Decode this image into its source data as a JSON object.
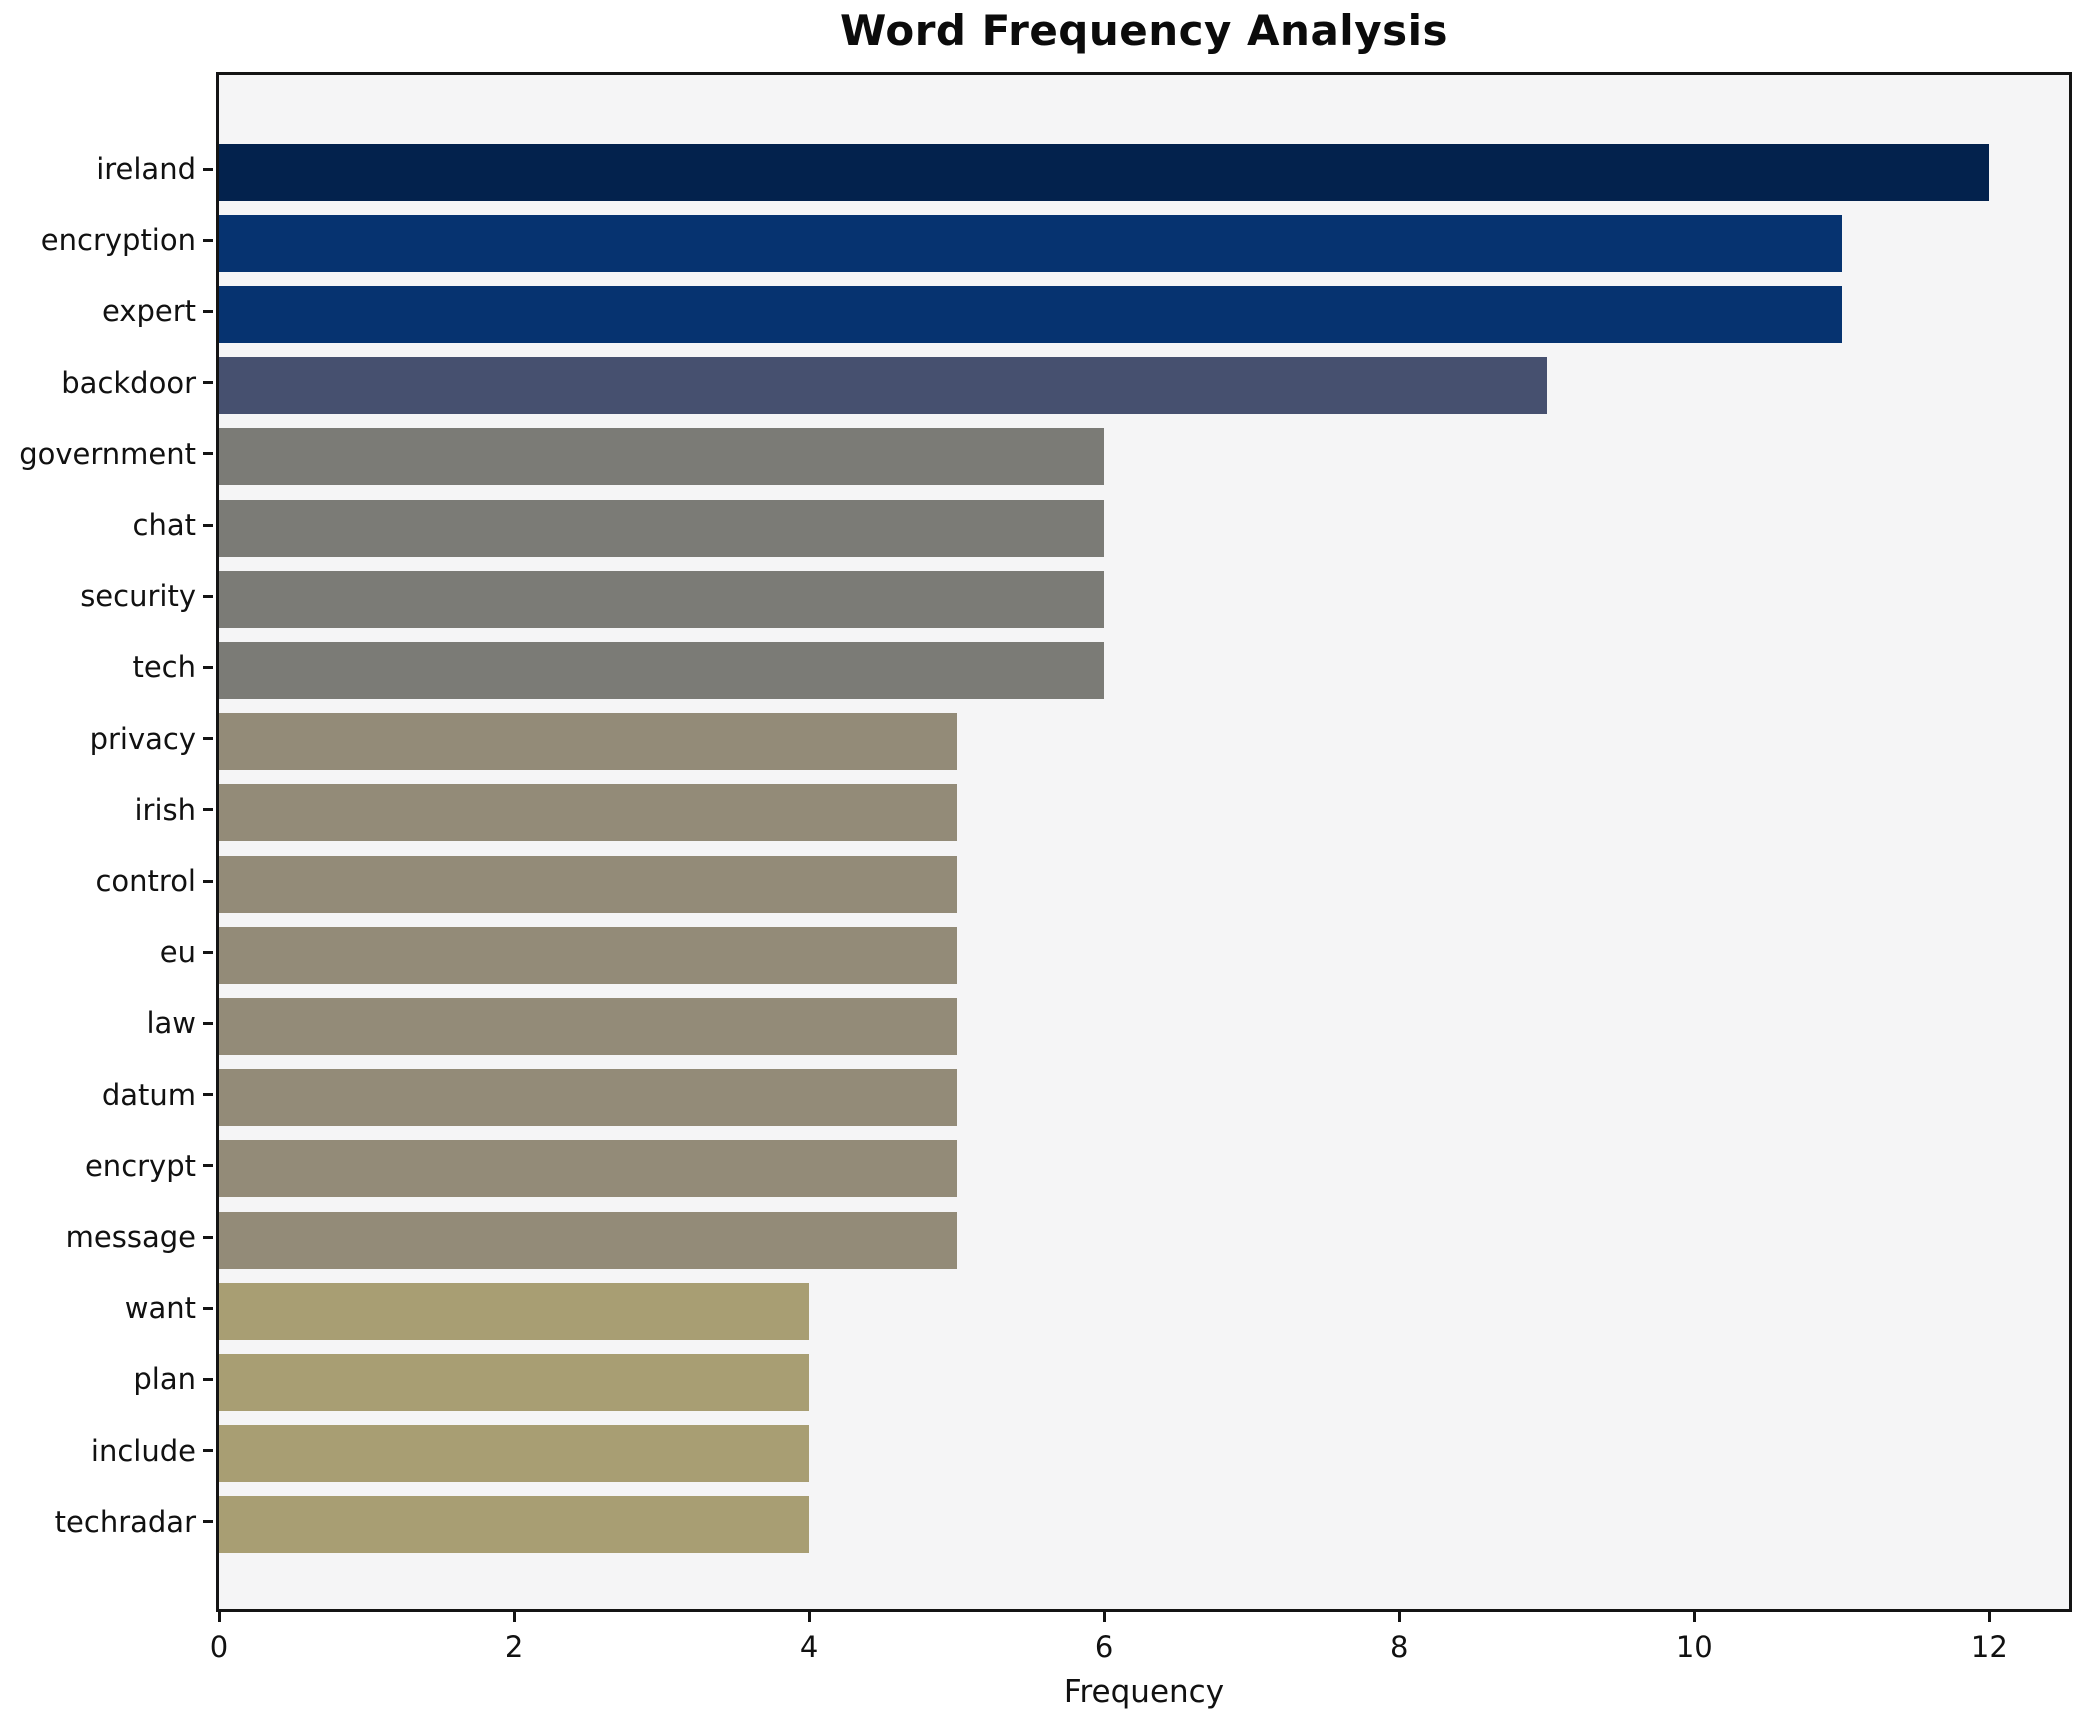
{
  "chart_data": {
    "type": "bar",
    "orientation": "horizontal",
    "title": "Word Frequency Analysis",
    "xlabel": "Frequency",
    "ylabel": "",
    "categories": [
      "ireland",
      "encryption",
      "expert",
      "backdoor",
      "government",
      "chat",
      "security",
      "tech",
      "privacy",
      "irish",
      "control",
      "eu",
      "law",
      "datum",
      "encrypt",
      "message",
      "want",
      "plan",
      "include",
      "techradar"
    ],
    "values": [
      12,
      11,
      11,
      9,
      6,
      6,
      6,
      6,
      5,
      5,
      5,
      5,
      5,
      5,
      5,
      5,
      4,
      4,
      4,
      4
    ],
    "bar_colors": [
      "#03224d",
      "#063370",
      "#063370",
      "#46506f",
      "#7b7b76",
      "#7b7b76",
      "#7b7b76",
      "#7b7b76",
      "#938b78",
      "#938b78",
      "#938b78",
      "#938b78",
      "#938b78",
      "#938b78",
      "#938b78",
      "#938b78",
      "#a89e73",
      "#a89e73",
      "#a89e73",
      "#a89e73"
    ],
    "xlim": [
      0,
      12.54
    ],
    "xticks": [
      0,
      2,
      4,
      6,
      8,
      10,
      12
    ],
    "grid": false,
    "legend_position": "none",
    "plot_background": "#f5f5f6",
    "figure_background": "#ffffff",
    "spine_color": "#141414"
  }
}
